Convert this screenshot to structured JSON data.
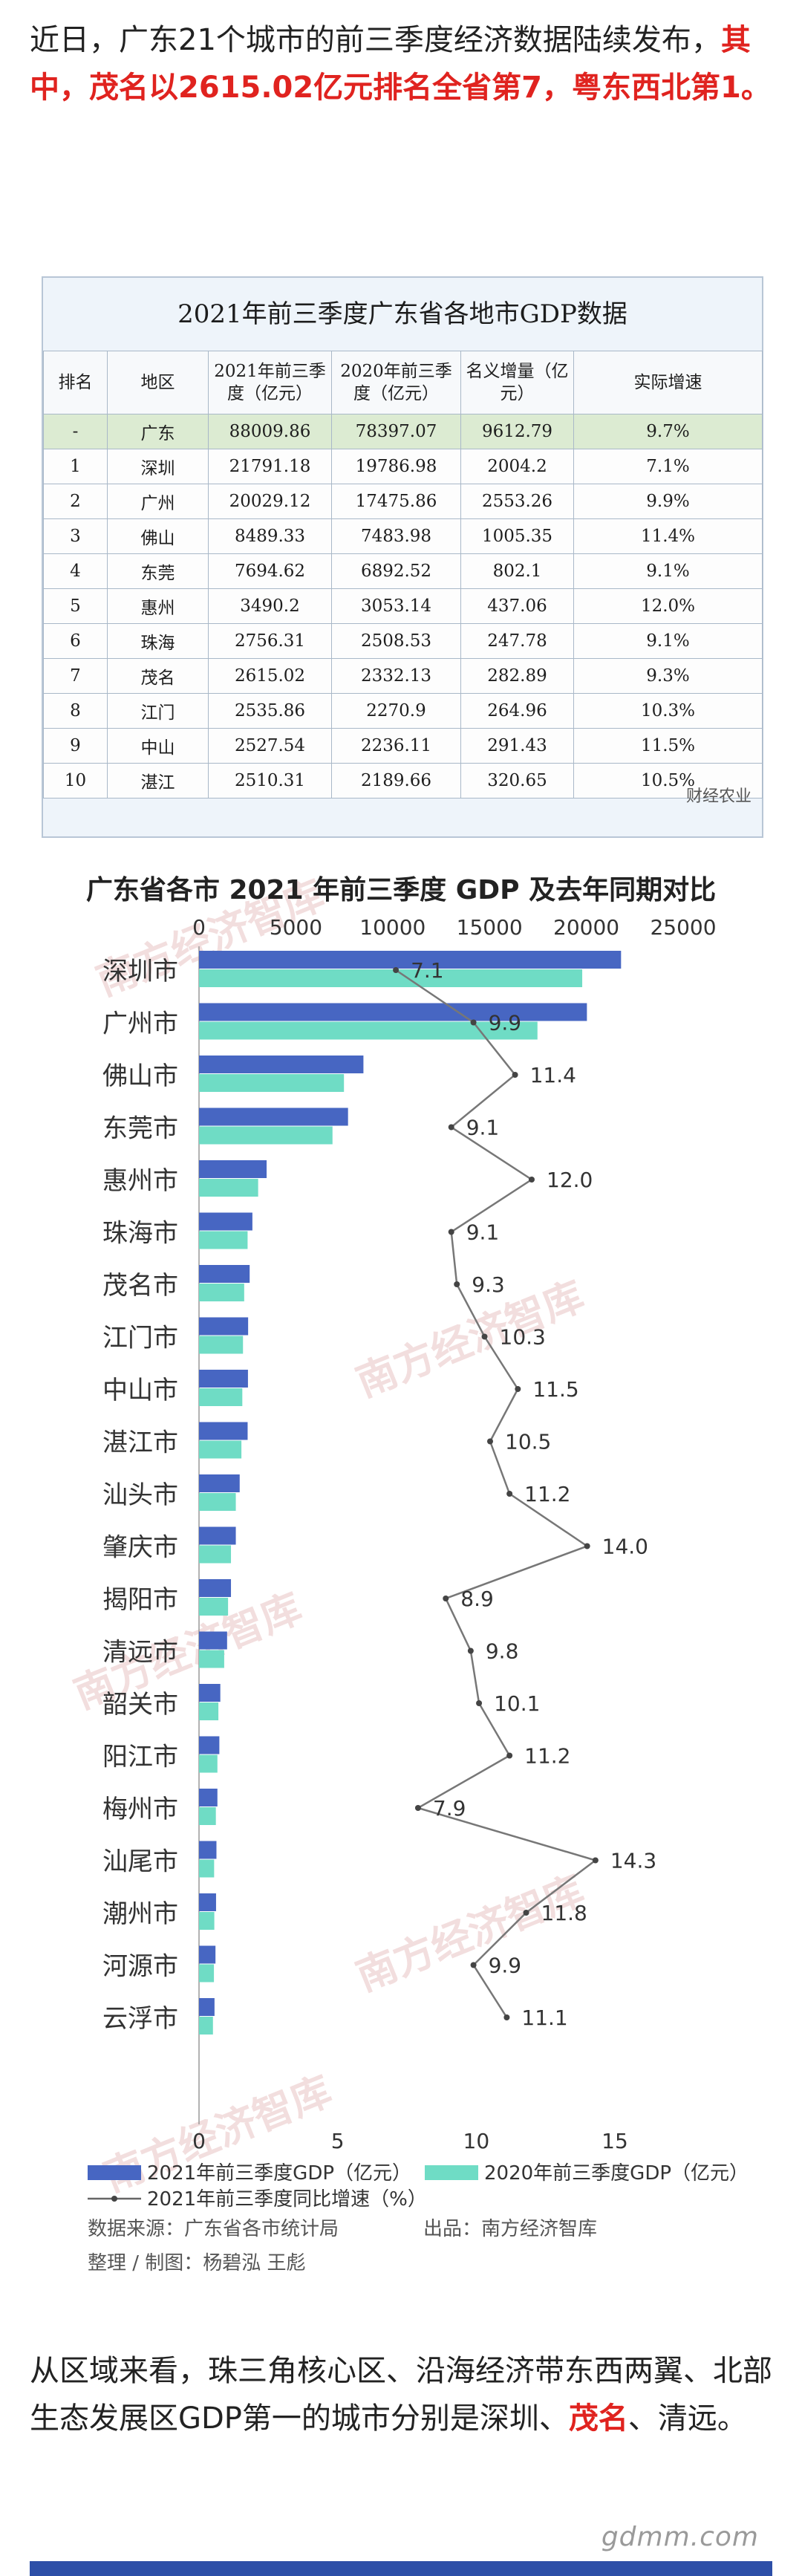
{
  "intro": {
    "line1": "近日，广东21个城市的前三季度经济数据陆续发布，",
    "highlight": "其中，茂名以2615.02亿元排名全省第7，粤东西北第1。"
  },
  "table": {
    "title": "2021年前三季度广东省各地市GDP数据",
    "headers": [
      "排名",
      "地区",
      "2021年前三季度（亿元）",
      "2020年前三季度（亿元）",
      "名义增量（亿元）",
      "实际增速"
    ],
    "rows": [
      [
        "-",
        "广东",
        "88009.86",
        "78397.07",
        "9612.79",
        "9.7%"
      ],
      [
        "1",
        "深圳",
        "21791.18",
        "19786.98",
        "2004.2",
        "7.1%"
      ],
      [
        "2",
        "广州",
        "20029.12",
        "17475.86",
        "2553.26",
        "9.9%"
      ],
      [
        "3",
        "佛山",
        "8489.33",
        "7483.98",
        "1005.35",
        "11.4%"
      ],
      [
        "4",
        "东莞",
        "7694.62",
        "6892.52",
        "802.1",
        "9.1%"
      ],
      [
        "5",
        "惠州",
        "3490.2",
        "3053.14",
        "437.06",
        "12.0%"
      ],
      [
        "6",
        "珠海",
        "2756.31",
        "2508.53",
        "247.78",
        "9.1%"
      ],
      [
        "7",
        "茂名",
        "2615.02",
        "2332.13",
        "282.89",
        "9.3%"
      ],
      [
        "8",
        "江门",
        "2535.86",
        "2270.9",
        "264.96",
        "10.3%"
      ],
      [
        "9",
        "中山",
        "2527.54",
        "2236.11",
        "291.43",
        "11.5%"
      ],
      [
        "10",
        "湛江",
        "2510.31",
        "2189.66",
        "320.65",
        "10.5%"
      ]
    ],
    "watermark": "财经农业"
  },
  "chart_data": {
    "type": "bar",
    "title": "广东省各市 2021 年前三季度 GDP 及去年同期对比",
    "categories": [
      "深圳市",
      "广州市",
      "佛山市",
      "东莞市",
      "惠州市",
      "珠海市",
      "茂名市",
      "江门市",
      "中山市",
      "湛江市",
      "汕头市",
      "肇庆市",
      "揭阳市",
      "清远市",
      "韶关市",
      "阳江市",
      "梅州市",
      "汕尾市",
      "潮州市",
      "河源市",
      "云浮市"
    ],
    "series": [
      {
        "name": "2021年前三季度GDP（亿元）",
        "color": "#4766c2",
        "values": [
          21791.18,
          20029.12,
          8489.33,
          7694.62,
          3490.2,
          2756.31,
          2615.02,
          2535.86,
          2527.54,
          2510.31,
          2100,
          1900,
          1650,
          1450,
          1100,
          1050,
          950,
          900,
          880,
          850,
          800
        ]
      },
      {
        "name": "2020年前三季度GDP（亿元）",
        "color": "#6fdcc5",
        "values": [
          19786.98,
          17475.86,
          7483.98,
          6892.52,
          3053.14,
          2508.53,
          2332.13,
          2270.9,
          2236.11,
          2189.66,
          1900,
          1650,
          1500,
          1300,
          1000,
          950,
          870,
          780,
          790,
          770,
          720
        ]
      },
      {
        "name": "2021年前三季度同比增速（%）",
        "color": "#666666",
        "type": "line",
        "values": [
          7.1,
          9.9,
          11.4,
          9.1,
          12.0,
          9.1,
          9.3,
          10.3,
          11.5,
          10.5,
          11.2,
          14.0,
          8.9,
          9.8,
          10.1,
          11.2,
          7.9,
          14.3,
          11.8,
          9.9,
          11.1
        ]
      }
    ],
    "top_axis": {
      "ticks": [
        "0",
        "5000",
        "10000",
        "15000",
        "20000",
        "25000"
      ],
      "range": [
        0,
        25000
      ]
    },
    "bottom_axis": {
      "ticks": [
        "0",
        "5",
        "10",
        "15"
      ],
      "range": [
        0,
        15
      ]
    },
    "grid": false,
    "legend": "bottom"
  },
  "source": {
    "data_source": "数据来源：广东省各市统计局",
    "publisher": "出品：南方经济智库",
    "editor": "整理 / 制图：杨碧泓 王彪",
    "watermark": "南方经济智库"
  },
  "outro": {
    "text_a": "从区域来看，珠三角核心区、沿海经济带东西两翼、北部生态发展区GDP第一的城市分别是深圳、",
    "red": "茂名",
    "text_b": "、清远。"
  },
  "footer": {
    "watermark": "gdmm.com"
  }
}
